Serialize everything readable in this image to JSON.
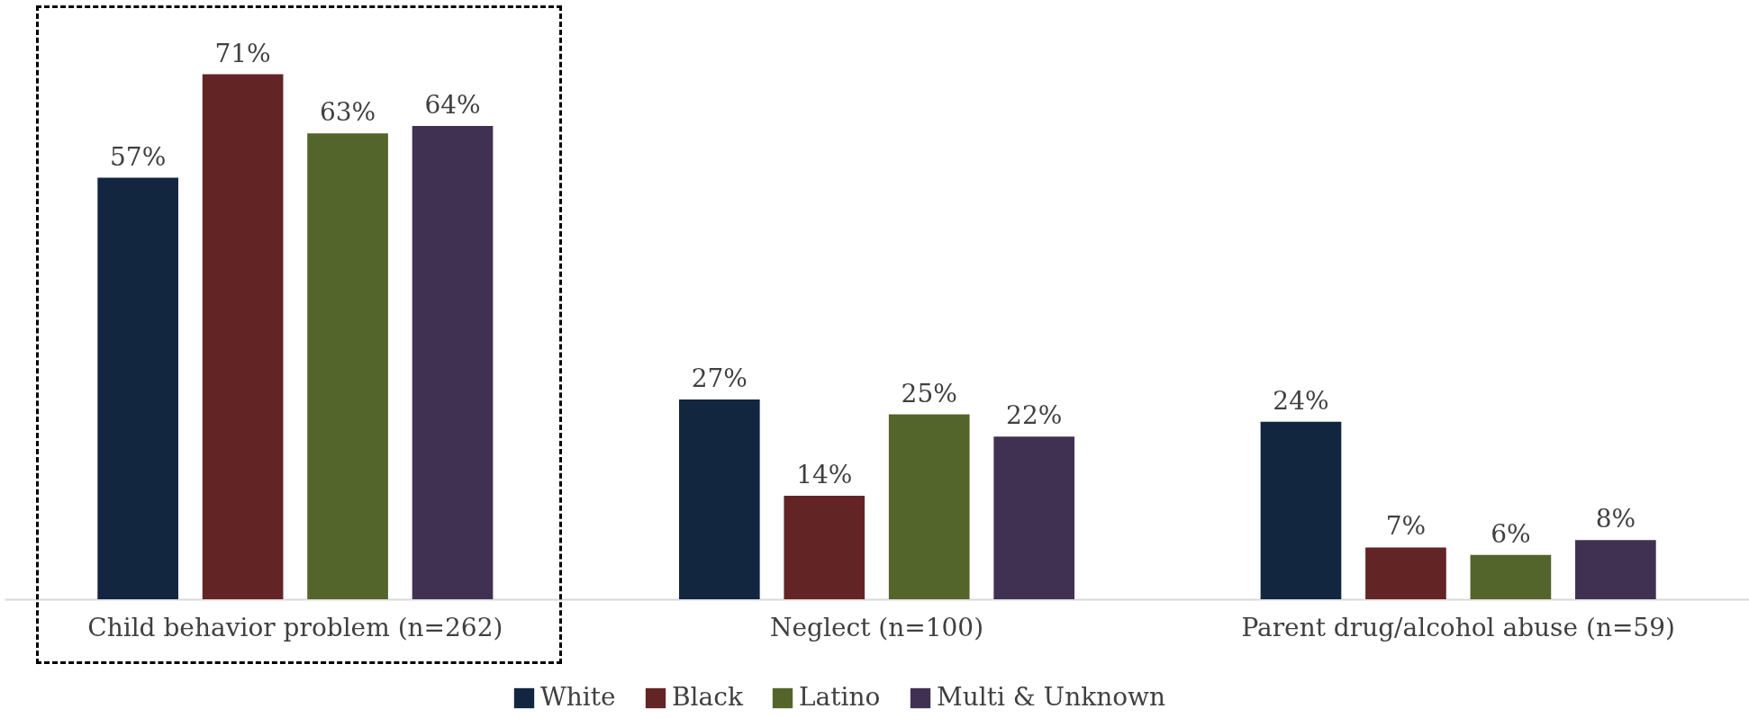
{
  "chart_data": {
    "type": "bar",
    "categories": [
      "Child behavior problem (n=262)",
      "Neglect (n=100)",
      "Parent drug/alcohol abuse (n=59)"
    ],
    "legend": "bottom",
    "series": [
      {
        "name": "White",
        "color": "#132640",
        "values": [
          57,
          27,
          24
        ],
        "value_labels": [
          "57%",
          "27%",
          "24%"
        ]
      },
      {
        "name": "Black",
        "color": "#632425",
        "values": [
          71,
          14,
          7
        ],
        "value_labels": [
          "71%",
          "14%",
          "7%"
        ]
      },
      {
        "name": "Latino",
        "color": "#53652a",
        "values": [
          63,
          25,
          6
        ],
        "value_labels": [
          "63%",
          "25%",
          "6%"
        ]
      },
      {
        "name": "Multi & Unknown",
        "color": "#403152",
        "values": [
          64,
          22,
          8
        ],
        "value_labels": [
          "64%",
          "22%",
          "8%"
        ]
      }
    ]
  }
}
